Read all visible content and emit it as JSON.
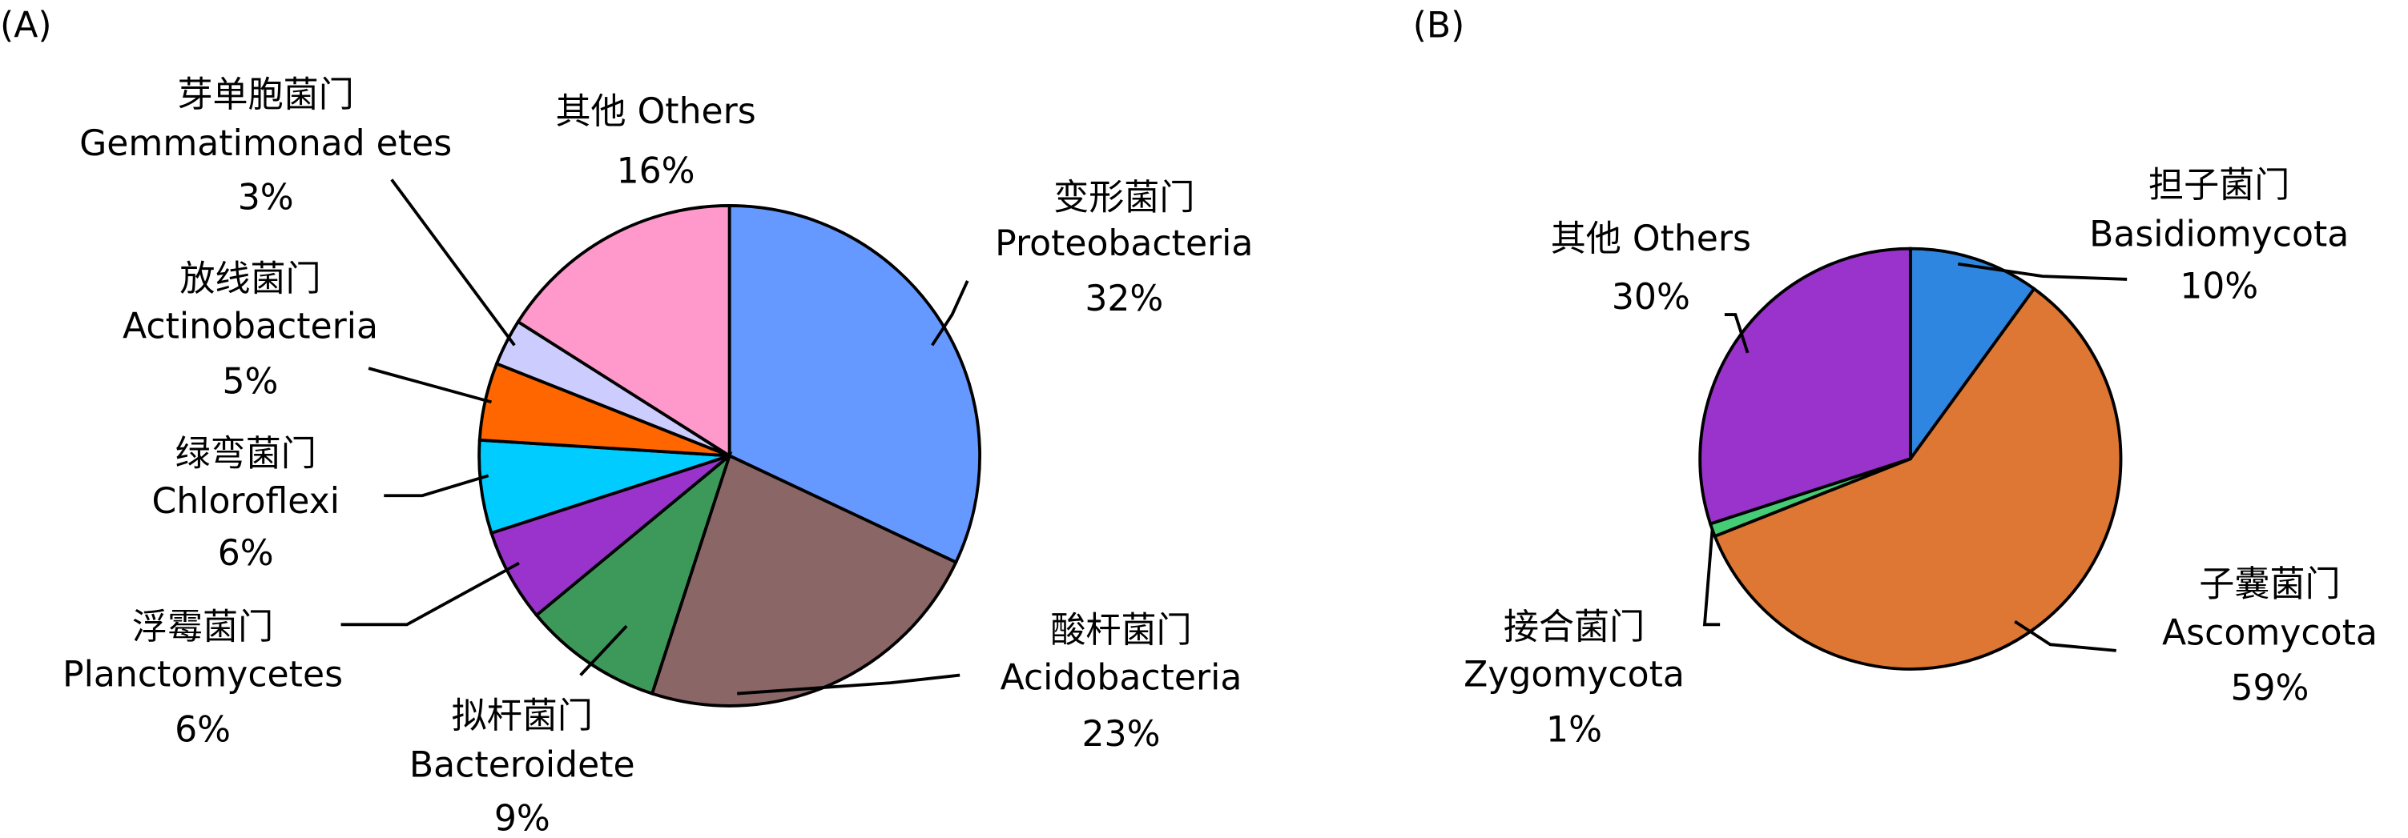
{
  "chart_data": [
    {
      "type": "pie",
      "panel": "(A)",
      "categories": [
        "变形菌门",
        "酸杆菌门",
        "拟杆菌门",
        "浮霉菌门",
        "绿弯菌门",
        "放线菌门",
        "芽单胞菌门",
        "其他"
      ],
      "categories_en": [
        "Proteobacteria",
        "Acidobacteria",
        "Bacteroidete",
        "Planctomycetes",
        "Chloroflexi",
        "Actinobacteria",
        "Gemmatimonad etes",
        "Others"
      ],
      "values": [
        32,
        23,
        9,
        6,
        6,
        5,
        3,
        16
      ],
      "value_labels": [
        "32%",
        "23%",
        "9%",
        "6%",
        "6%",
        "5%",
        "3%",
        "16%"
      ],
      "colors": [
        "#6699ff",
        "#8b6666",
        "#3d995a",
        "#9933cc",
        "#00ccff",
        "#ff6600",
        "#ccccff",
        "#ff99cc"
      ]
    },
    {
      "type": "pie",
      "panel": "(B)",
      "categories": [
        "担子菌门",
        "子囊菌门",
        "接合菌门",
        "其他"
      ],
      "categories_en": [
        "Basidiomycota",
        "Ascomycota",
        "Zygomycota",
        "Others"
      ],
      "values": [
        10,
        59,
        1,
        30
      ],
      "value_labels": [
        "10%",
        "59%",
        "1%",
        "30%"
      ],
      "colors": [
        "#2f86e0",
        "#dd7733",
        "#44cc77",
        "#9933cc"
      ]
    }
  ]
}
